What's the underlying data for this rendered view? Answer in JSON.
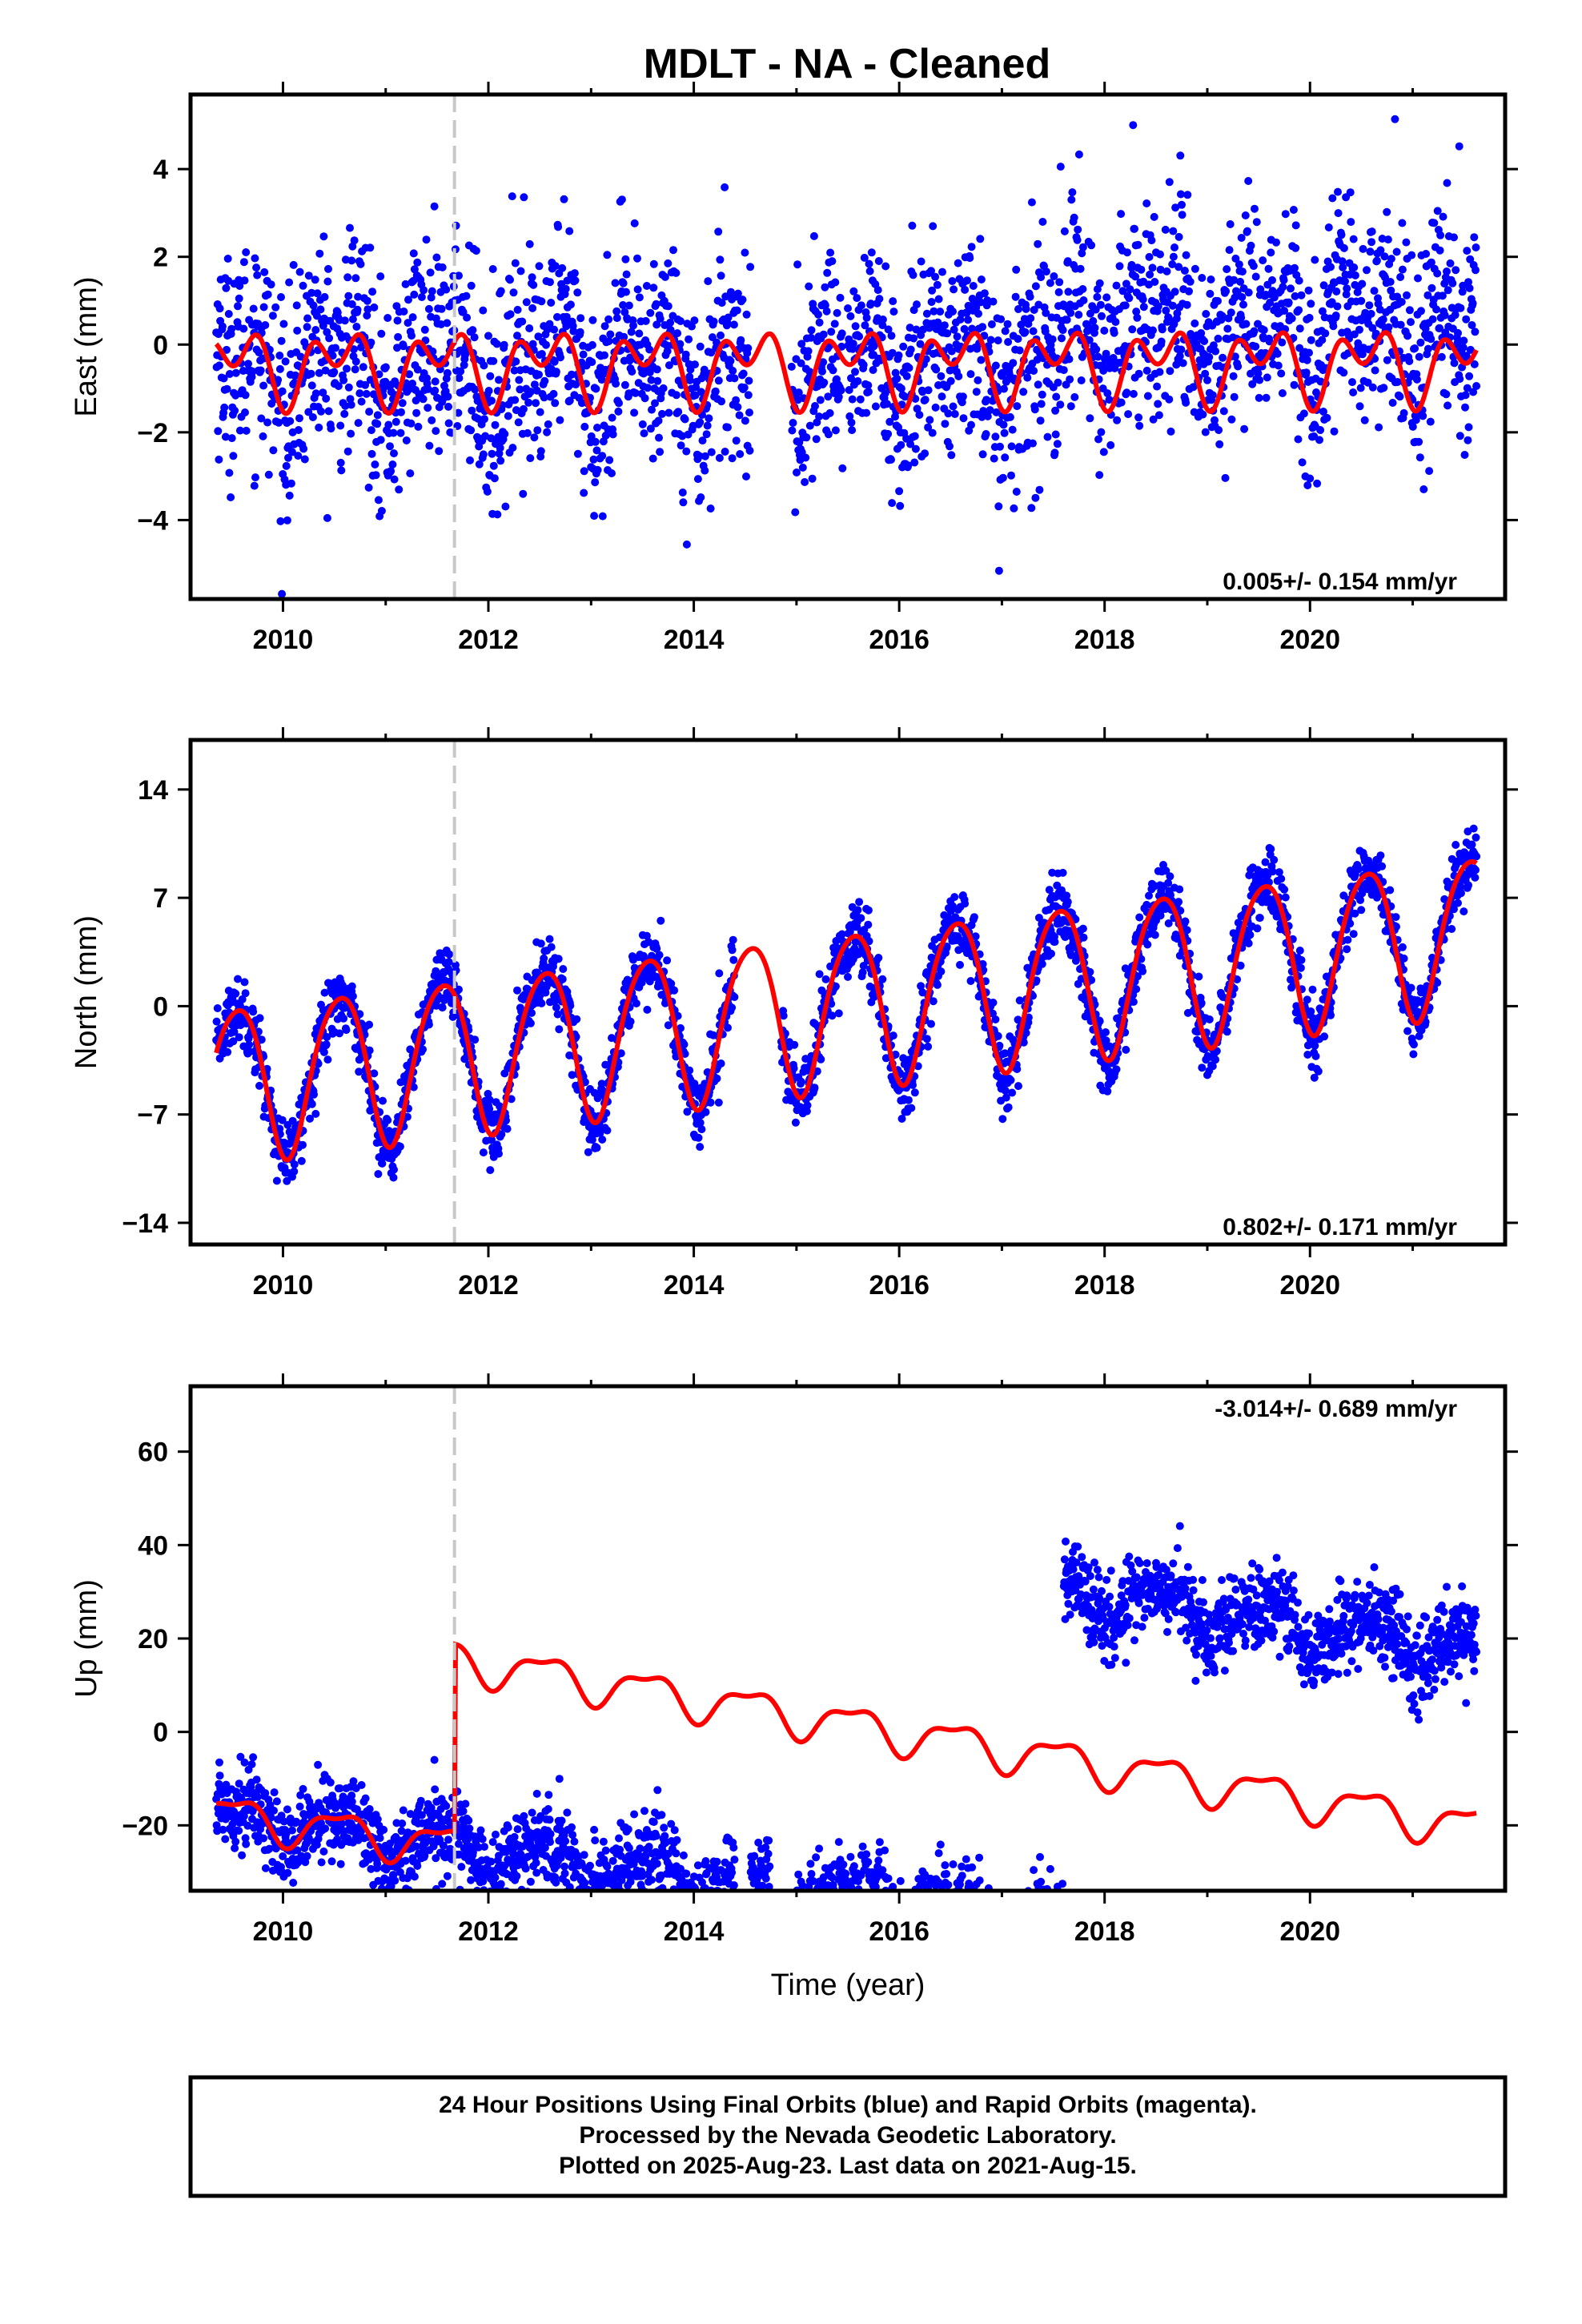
{
  "title": "MDLT  - NA - Cleaned",
  "footer": {
    "lines": [
      "24 Hour Positions Using Final Orbits (blue) and Rapid Orbits (magenta).",
      "Processed by the Nevada Geodetic Laboratory.",
      "Plotted on 2025-Aug-23. Last data on 2021-Aug-15."
    ]
  },
  "colors": {
    "data_points": "#0000ff",
    "model_curve": "#ff0000",
    "event_line": "#c8c8c8",
    "frame": "#000000"
  },
  "chart_data": [
    {
      "type": "scatter",
      "id": "east",
      "ylabel": "East (mm)",
      "xlabel": "",
      "xlim": [
        2009.1,
        2021.9
      ],
      "ylim": [
        -5.8,
        5.7
      ],
      "xticks": [
        2010,
        2012,
        2014,
        2016,
        2018,
        2020
      ],
      "xtick_labels": [
        "2010",
        "2012",
        "2014",
        "2016",
        "2018",
        "2020"
      ],
      "yticks": [
        -4,
        -2,
        0,
        2,
        4
      ],
      "ytick_labels": [
        "−4",
        "−2",
        "0",
        "2",
        "4"
      ],
      "rate_label": "0.005+/- 0.154 mm/yr",
      "event_lines_x": [
        2011.67
      ],
      "data_range_x": [
        2009.35,
        2021.62
      ],
      "gap_x": [
        [
          2014.55,
          2014.95
        ],
        [
          2015.45,
          2015.5
        ]
      ],
      "rate_mm_per_yr": 0.005,
      "seasonal": {
        "annual_amp": 0.55,
        "semiannual_amp": 0.55
      },
      "scatter_sigma": 1.2,
      "offsets": [
        {
          "x": 2017.55,
          "dy": 0.9
        }
      ]
    },
    {
      "type": "scatter",
      "id": "north",
      "ylabel": "North (mm)",
      "xlabel": "",
      "xlim": [
        2009.1,
        2021.9
      ],
      "ylim": [
        -15.4,
        17.2
      ],
      "xticks": [
        2010,
        2012,
        2014,
        2016,
        2018,
        2020
      ],
      "xtick_labels": [
        "2010",
        "2012",
        "2014",
        "2016",
        "2018",
        "2020"
      ],
      "yticks": [
        -14,
        -7,
        0,
        7,
        14
      ],
      "ytick_labels": [
        "−14",
        "−7",
        "0",
        "7",
        "14"
      ],
      "rate_label": "0.802+/- 0.171 mm/yr",
      "event_lines_x": [
        2011.67
      ],
      "data_range_x": [
        2009.35,
        2021.62
      ],
      "gap_x": [
        [
          2014.4,
          2014.85
        ]
      ],
      "rate_mm_per_yr": 0.802,
      "seasonal": {
        "annual_amp": 5.0,
        "semiannual_amp": 0.6
      },
      "scatter_sigma": 1.1,
      "offsets": []
    },
    {
      "type": "scatter",
      "id": "up",
      "ylabel": "Up (mm)",
      "xlabel": "Time (year)",
      "xlim": [
        2009.1,
        2021.9
      ],
      "ylim": [
        -34,
        74
      ],
      "xticks": [
        2010,
        2012,
        2014,
        2016,
        2018,
        2020
      ],
      "xtick_labels": [
        "2010",
        "2012",
        "2014",
        "2016",
        "2018",
        "2020"
      ],
      "yticks": [
        -20,
        0,
        20,
        40,
        60
      ],
      "ytick_labels": [
        "−20",
        "0",
        "20",
        "40",
        "60"
      ],
      "rate_label": "-3.014+/- 0.689 mm/yr",
      "event_lines_x": [
        2011.67
      ],
      "data_range_x": [
        2009.35,
        2021.62
      ],
      "gap_x": [
        [
          2014.4,
          2014.55
        ],
        [
          2014.75,
          2015.0
        ]
      ],
      "rate_mm_per_yr": -3.014,
      "seasonal": {
        "annual_amp": 4.0,
        "semiannual_amp": 1.5
      },
      "scatter_sigma": 4.5,
      "offsets": [
        {
          "x": 2011.67,
          "dy": 0
        },
        {
          "x": 2017.6,
          "dy": 72
        }
      ]
    }
  ]
}
